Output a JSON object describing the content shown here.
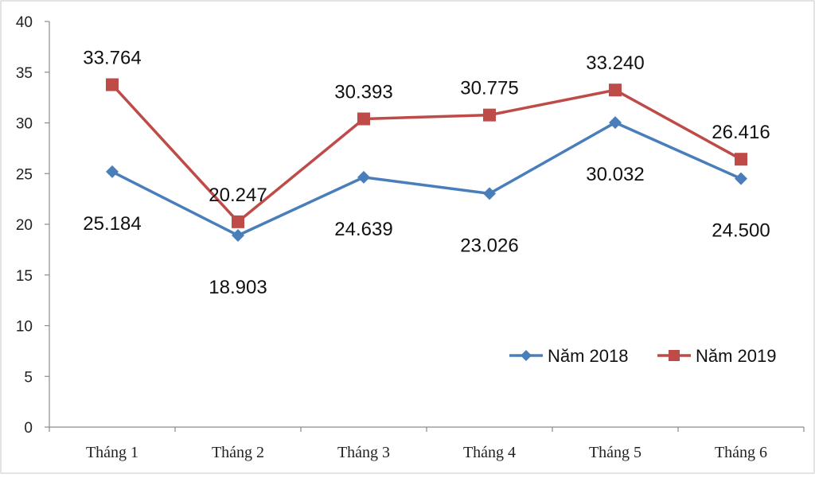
{
  "chart_data": {
    "type": "line",
    "categories": [
      "Tháng 1",
      "Tháng 2",
      "Tháng 3",
      "Tháng 4",
      "Tháng 5",
      "Tháng 6"
    ],
    "ylim": [
      0,
      40
    ],
    "yticks": [
      0,
      5,
      10,
      15,
      20,
      25,
      30,
      35,
      40
    ],
    "grid": false,
    "legend": "bottom-right",
    "series": [
      {
        "name": "Năm 2018",
        "values": [
          25.184,
          18.903,
          24.639,
          23.026,
          30.032,
          24.5
        ],
        "labels": [
          "25.184",
          "18.903",
          "24.639",
          "23.026",
          "30.032",
          "24.500"
        ],
        "color": "#4a7ebb",
        "marker": "diamond"
      },
      {
        "name": "Năm 2019",
        "values": [
          33.764,
          20.247,
          30.393,
          30.775,
          33.24,
          26.416
        ],
        "labels": [
          "33.764",
          "20.247",
          "30.393",
          "30.775",
          "33.240",
          "26.416"
        ],
        "color": "#be4b48",
        "marker": "square"
      }
    ]
  }
}
